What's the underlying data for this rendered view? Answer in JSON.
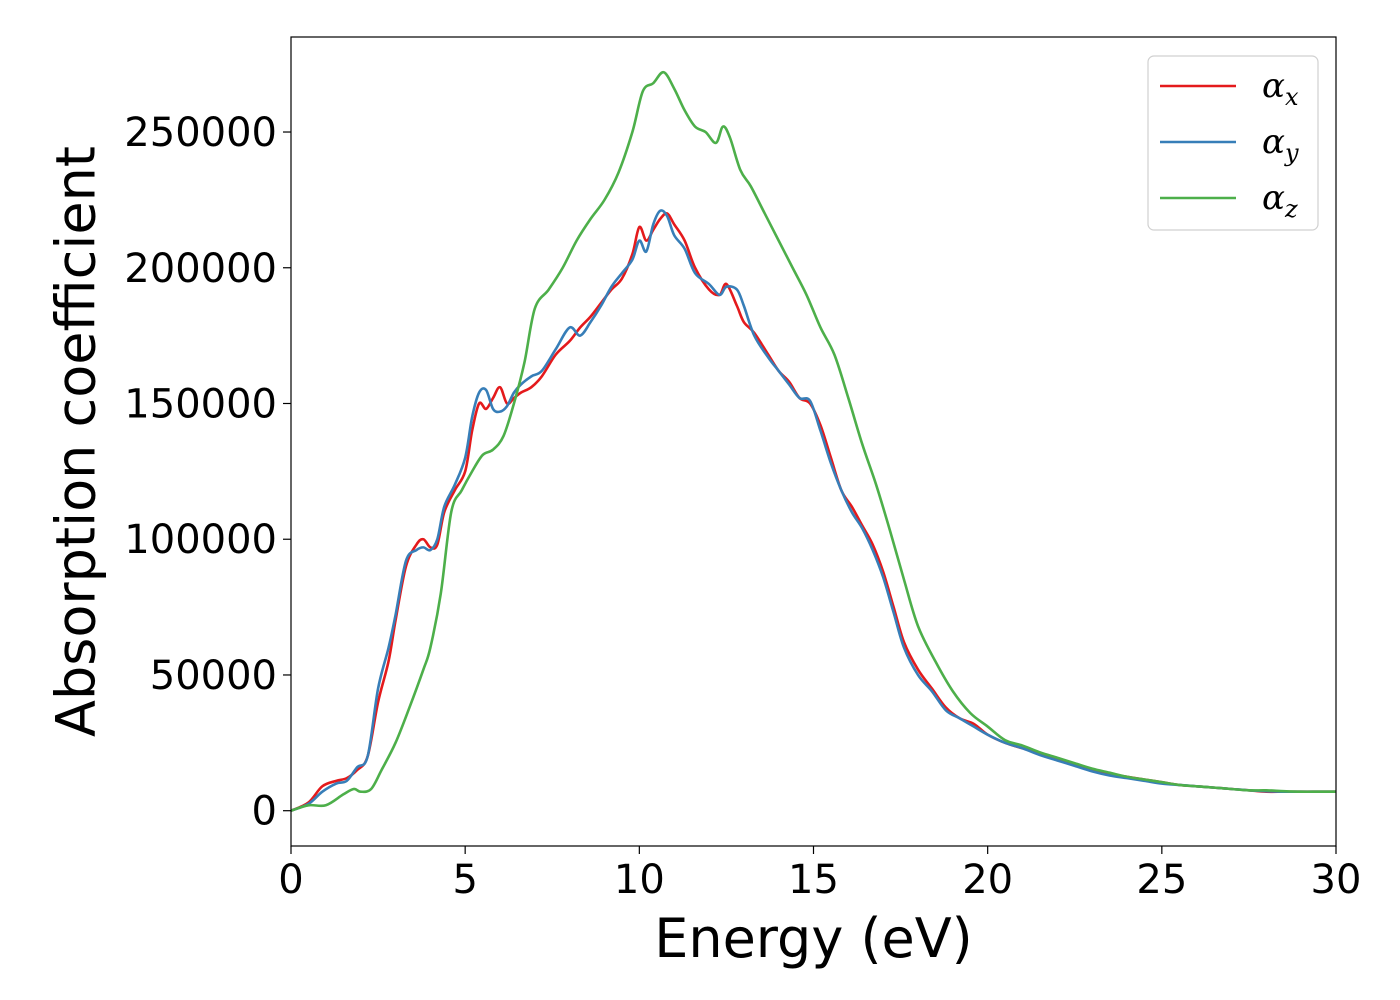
{
  "chart_data": {
    "type": "line",
    "title": "",
    "xlabel": "Energy (eV)",
    "ylabel": "Absorption coefficient",
    "xlim": [
      0,
      30
    ],
    "ylim": [
      -13000,
      285000
    ],
    "xticks": [
      0,
      5,
      10,
      15,
      20,
      25,
      30
    ],
    "xtick_labels": [
      "0",
      "5",
      "10",
      "15",
      "20",
      "25",
      "30"
    ],
    "yticks": [
      0,
      50000,
      100000,
      150000,
      200000,
      250000
    ],
    "ytick_labels": [
      "0",
      "50000",
      "100000",
      "150000",
      "200000",
      "250000"
    ],
    "grid": false,
    "legend_position": "top-right",
    "series": [
      {
        "name": "α_x",
        "label_base": "α",
        "label_sub": "x",
        "color": "#e41a1c",
        "x": [
          0,
          0.5,
          0.9,
          1.3,
          1.6,
          1.9,
          2.2,
          2.5,
          2.8,
          3.0,
          3.3,
          3.6,
          3.8,
          4.0,
          4.2,
          4.4,
          4.7,
          5.0,
          5.2,
          5.4,
          5.6,
          5.8,
          6.0,
          6.2,
          6.4,
          6.6,
          6.9,
          7.2,
          7.6,
          8.0,
          8.3,
          8.6,
          8.9,
          9.2,
          9.5,
          9.8,
          10.0,
          10.2,
          10.4,
          10.6,
          10.8,
          11.0,
          11.3,
          11.6,
          12.0,
          12.3,
          12.5,
          12.8,
          13.0,
          13.3,
          13.7,
          14.0,
          14.3,
          14.6,
          14.9,
          15.2,
          15.5,
          15.8,
          16.1,
          16.4,
          16.7,
          17.0,
          17.3,
          17.6,
          18.0,
          18.4,
          18.8,
          19.2,
          19.6,
          20.0,
          20.5,
          21.0,
          21.5,
          22.0,
          22.5,
          23.0,
          23.5,
          24.0,
          24.5,
          25.0,
          25.5,
          26.0,
          26.5,
          27.0,
          27.5,
          28.0,
          28.5,
          29.0,
          29.5,
          30.0
        ],
        "y": [
          0,
          3000,
          9000,
          11000,
          12000,
          15000,
          20000,
          40000,
          55000,
          70000,
          90000,
          98000,
          100000,
          97000,
          98000,
          110000,
          118000,
          125000,
          140000,
          150000,
          148000,
          152000,
          156000,
          150000,
          152000,
          154000,
          156000,
          160000,
          168000,
          173000,
          178000,
          182000,
          187000,
          192000,
          196000,
          205000,
          215000,
          210000,
          214000,
          218000,
          220000,
          216000,
          210000,
          200000,
          192000,
          190000,
          194000,
          186000,
          180000,
          176000,
          168000,
          162000,
          158000,
          152000,
          150000,
          142000,
          130000,
          118000,
          112000,
          105000,
          98000,
          88000,
          75000,
          62000,
          52000,
          45000,
          38000,
          34000,
          32000,
          28000,
          25000,
          23000,
          21000,
          19000,
          17000,
          15000,
          13500,
          12500,
          11500,
          10500,
          9500,
          9000,
          8500,
          8000,
          7500,
          7000,
          7000,
          7000,
          7000,
          7000
        ]
      },
      {
        "name": "α_y",
        "label_base": "α",
        "label_sub": "y",
        "color": "#377eb8",
        "x": [
          0,
          0.5,
          0.9,
          1.3,
          1.6,
          1.9,
          2.2,
          2.5,
          2.8,
          3.0,
          3.3,
          3.6,
          3.8,
          4.0,
          4.2,
          4.4,
          4.7,
          5.0,
          5.2,
          5.4,
          5.6,
          5.8,
          6.0,
          6.2,
          6.4,
          6.6,
          6.9,
          7.2,
          7.6,
          8.0,
          8.3,
          8.6,
          8.9,
          9.2,
          9.5,
          9.8,
          10.0,
          10.2,
          10.4,
          10.6,
          10.8,
          11.0,
          11.3,
          11.6,
          12.0,
          12.3,
          12.5,
          12.8,
          13.0,
          13.3,
          13.7,
          14.0,
          14.3,
          14.6,
          14.9,
          15.2,
          15.5,
          15.8,
          16.1,
          16.4,
          16.7,
          17.0,
          17.3,
          17.6,
          18.0,
          18.4,
          18.8,
          19.2,
          19.6,
          20.0,
          20.5,
          21.0,
          21.5,
          22.0,
          22.5,
          23.0,
          23.5,
          24.0,
          24.5,
          25.0,
          25.5,
          26.0,
          26.5,
          27.0,
          27.5,
          28.0,
          28.5,
          29.0,
          29.5,
          30.0
        ],
        "y": [
          0,
          2500,
          7000,
          10000,
          11000,
          16000,
          20000,
          45000,
          60000,
          72000,
          92000,
          96000,
          97000,
          96000,
          100000,
          112000,
          120000,
          130000,
          145000,
          154000,
          155000,
          148000,
          147000,
          149000,
          154000,
          157000,
          160000,
          162000,
          170000,
          178000,
          175000,
          180000,
          186000,
          193000,
          198000,
          203000,
          210000,
          206000,
          216000,
          221000,
          219000,
          212000,
          207000,
          198000,
          194000,
          190000,
          193000,
          192000,
          186000,
          175000,
          167000,
          162000,
          157000,
          152000,
          151000,
          140000,
          128000,
          118000,
          110000,
          104000,
          96000,
          86000,
          73000,
          60000,
          50000,
          44000,
          37000,
          34000,
          31000,
          28000,
          25000,
          23000,
          20500,
          18500,
          16500,
          14500,
          13000,
          12000,
          11000,
          10000,
          9500,
          9000,
          8500,
          8000,
          7500,
          7200,
          7000,
          7000,
          7000,
          7000
        ]
      },
      {
        "name": "α_z",
        "label_base": "α",
        "label_sub": "z",
        "color": "#4daf4a",
        "x": [
          0,
          0.5,
          1.0,
          1.5,
          1.8,
          2.0,
          2.3,
          2.6,
          3.0,
          3.4,
          3.8,
          4.0,
          4.3,
          4.6,
          4.9,
          5.2,
          5.5,
          5.8,
          6.1,
          6.4,
          6.7,
          7.0,
          7.4,
          7.8,
          8.2,
          8.6,
          9.0,
          9.4,
          9.8,
          10.1,
          10.4,
          10.7,
          11.0,
          11.3,
          11.6,
          11.9,
          12.2,
          12.4,
          12.6,
          12.9,
          13.2,
          13.6,
          14.0,
          14.4,
          14.8,
          15.2,
          15.6,
          16.0,
          16.4,
          16.8,
          17.2,
          17.6,
          18.0,
          18.5,
          19.0,
          19.5,
          20.0,
          20.5,
          21.0,
          21.5,
          22.0,
          22.5,
          23.0,
          23.5,
          24.0,
          24.5,
          25.0,
          25.5,
          26.0,
          26.5,
          27.0,
          27.5,
          28.0,
          28.5,
          29.0,
          29.5,
          30.0
        ],
        "y": [
          0,
          2000,
          2000,
          6000,
          8000,
          7000,
          8000,
          15000,
          25000,
          38000,
          52000,
          60000,
          80000,
          110000,
          118000,
          125000,
          131000,
          133000,
          138000,
          150000,
          165000,
          185000,
          192000,
          200000,
          210000,
          218000,
          225000,
          235000,
          250000,
          265000,
          268000,
          272000,
          266000,
          258000,
          252000,
          250000,
          246000,
          252000,
          248000,
          236000,
          230000,
          220000,
          210000,
          200000,
          190000,
          178000,
          168000,
          152000,
          135000,
          120000,
          103000,
          85000,
          68000,
          55000,
          44000,
          36000,
          31000,
          26000,
          24000,
          21500,
          19500,
          17500,
          15500,
          14000,
          12500,
          11500,
          10500,
          9500,
          9000,
          8500,
          8000,
          7500,
          7500,
          7200,
          7000,
          7000,
          7000
        ]
      }
    ]
  }
}
